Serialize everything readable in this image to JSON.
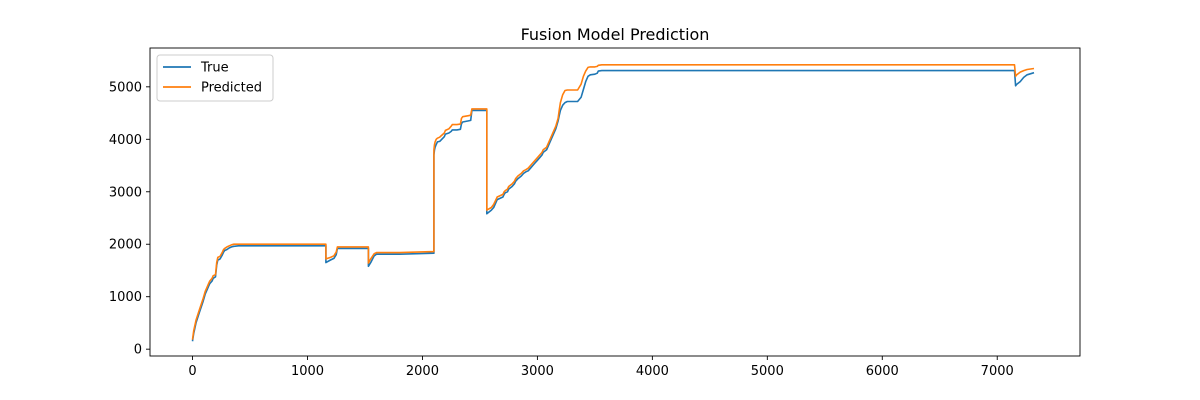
{
  "chart_data": {
    "type": "line",
    "title": "Fusion Model Prediction",
    "xlabel": "",
    "ylabel": "",
    "xlim": [
      -370,
      7720
    ],
    "ylim": [
      -130,
      5740
    ],
    "xticks": [
      0,
      1000,
      2000,
      3000,
      4000,
      5000,
      6000,
      7000
    ],
    "yticks": [
      0,
      1000,
      2000,
      3000,
      4000,
      5000
    ],
    "grid": false,
    "legend_position": "top-left",
    "series": [
      {
        "name": "True",
        "color": "#1f77b4",
        "x": [
          0,
          10,
          30,
          60,
          90,
          110,
          130,
          140,
          150,
          170,
          180,
          200,
          210,
          220,
          230,
          240,
          260,
          270,
          280,
          300,
          320,
          340,
          360,
          400,
          1160,
          1160,
          1200,
          1230,
          1250,
          1260,
          1300,
          1530,
          1530,
          1550,
          1580,
          1600,
          1800,
          2100,
          2100,
          2105,
          2110,
          2120,
          2130,
          2150,
          2160,
          2190,
          2200,
          2230,
          2250,
          2260,
          2300,
          2330,
          2340,
          2350,
          2400,
          2420,
          2430,
          2560,
          2560,
          2600,
          2620,
          2640,
          2650,
          2700,
          2710,
          2720,
          2740,
          2750,
          2780,
          2800,
          2810,
          2830,
          2860,
          2880,
          2900,
          2920,
          2940,
          2960,
          2980,
          3000,
          3020,
          3040,
          3050,
          3080,
          3100,
          3120,
          3140,
          3160,
          3180,
          3190,
          3200,
          3220,
          3240,
          3260,
          3350,
          3380,
          3400,
          3420,
          3440,
          3460,
          3500,
          3520,
          3530,
          3560,
          4000,
          7150,
          7160,
          7170,
          7200,
          7230,
          7260,
          7320
        ],
        "y": [
          150,
          300,
          500,
          700,
          900,
          1050,
          1150,
          1200,
          1250,
          1300,
          1350,
          1380,
          1600,
          1700,
          1710,
          1720,
          1800,
          1850,
          1880,
          1900,
          1930,
          1950,
          1960,
          1970,
          1970,
          1650,
          1700,
          1730,
          1800,
          1920,
          1920,
          1920,
          1580,
          1650,
          1780,
          1810,
          1810,
          1830,
          3700,
          3800,
          3850,
          3900,
          3950,
          3960,
          3980,
          4050,
          4100,
          4120,
          4150,
          4180,
          4180,
          4190,
          4300,
          4330,
          4350,
          4360,
          4550,
          4550,
          2580,
          2650,
          2700,
          2800,
          2850,
          2900,
          2950,
          2980,
          3000,
          3050,
          3100,
          3150,
          3200,
          3250,
          3300,
          3350,
          3380,
          3400,
          3450,
          3500,
          3550,
          3600,
          3650,
          3700,
          3750,
          3800,
          3900,
          4000,
          4100,
          4200,
          4350,
          4450,
          4550,
          4650,
          4700,
          4720,
          4720,
          4800,
          4950,
          5100,
          5200,
          5230,
          5240,
          5260,
          5300,
          5310,
          5310,
          5310,
          5020,
          5050,
          5100,
          5180,
          5230,
          5270
        ]
      },
      {
        "name": "Predicted",
        "color": "#ff7f0e",
        "x": [
          0,
          10,
          30,
          60,
          90,
          110,
          130,
          140,
          150,
          170,
          180,
          200,
          210,
          220,
          230,
          240,
          260,
          270,
          280,
          300,
          320,
          340,
          360,
          400,
          1160,
          1160,
          1200,
          1230,
          1250,
          1260,
          1300,
          1530,
          1530,
          1550,
          1580,
          1600,
          1800,
          2100,
          2100,
          2105,
          2110,
          2120,
          2130,
          2150,
          2160,
          2190,
          2200,
          2230,
          2250,
          2260,
          2300,
          2330,
          2340,
          2350,
          2400,
          2420,
          2430,
          2560,
          2560,
          2600,
          2620,
          2640,
          2650,
          2700,
          2710,
          2720,
          2740,
          2750,
          2780,
          2800,
          2810,
          2830,
          2860,
          2880,
          2900,
          2920,
          2940,
          2960,
          2980,
          3000,
          3020,
          3040,
          3050,
          3080,
          3100,
          3120,
          3140,
          3160,
          3180,
          3190,
          3200,
          3220,
          3240,
          3260,
          3350,
          3380,
          3400,
          3420,
          3440,
          3460,
          3500,
          3520,
          3530,
          3560,
          4000,
          7150,
          7160,
          7170,
          7200,
          7230,
          7260,
          7320
        ],
        "y": [
          180,
          350,
          550,
          750,
          950,
          1100,
          1200,
          1250,
          1300,
          1350,
          1400,
          1420,
          1650,
          1750,
          1760,
          1770,
          1850,
          1900,
          1920,
          1950,
          1970,
          1990,
          2000,
          2000,
          2000,
          1720,
          1750,
          1780,
          1850,
          1950,
          1950,
          1950,
          1640,
          1720,
          1820,
          1840,
          1840,
          1860,
          3800,
          3900,
          3950,
          4000,
          4020,
          4040,
          4060,
          4120,
          4170,
          4200,
          4250,
          4280,
          4280,
          4290,
          4400,
          4430,
          4450,
          4460,
          4580,
          4580,
          2650,
          2700,
          2760,
          2850,
          2900,
          2950,
          3000,
          3020,
          3050,
          3100,
          3150,
          3200,
          3250,
          3300,
          3350,
          3400,
          3420,
          3450,
          3500,
          3550,
          3600,
          3650,
          3700,
          3750,
          3800,
          3850,
          3950,
          4050,
          4150,
          4250,
          4400,
          4550,
          4700,
          4850,
          4930,
          4940,
          4940,
          5050,
          5200,
          5300,
          5370,
          5380,
          5380,
          5390,
          5410,
          5420,
          5420,
          5420,
          5200,
          5230,
          5280,
          5310,
          5330,
          5350
        ]
      }
    ]
  }
}
